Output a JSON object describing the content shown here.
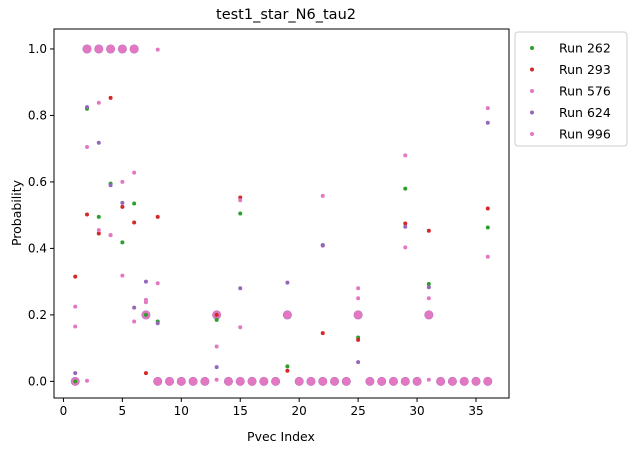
{
  "chart_data": {
    "type": "scatter",
    "title": "test1_star_N6_tau2",
    "xlabel": "Pvec Index",
    "ylabel": "Probability",
    "xlim": [
      -0.8,
      37.8
    ],
    "ylim": [
      -0.05,
      1.06
    ],
    "xticks": [
      0,
      5,
      10,
      15,
      20,
      25,
      30,
      35
    ],
    "xtick_labels": [
      "0",
      "5",
      "10",
      "15",
      "20",
      "25",
      "30",
      "35"
    ],
    "yticks": [
      0.0,
      0.2,
      0.4,
      0.6,
      0.8,
      1.0
    ],
    "ytick_labels": [
      "0.0",
      "0.2",
      "0.4",
      "0.6",
      "0.8",
      "1.0"
    ],
    "grid": false,
    "legend_position": "outside-top-right",
    "cluster_points": {
      "description_free": true,
      "big_x": [
        1,
        2,
        3,
        4,
        5,
        6,
        7,
        8,
        9,
        10,
        11,
        12,
        13,
        14,
        15,
        16,
        17,
        18,
        19,
        20,
        21,
        22,
        23,
        24,
        26,
        27,
        28,
        29,
        30,
        31,
        32,
        33,
        34,
        35,
        36
      ],
      "big_y": [
        0,
        1,
        1,
        1,
        1,
        1,
        0.2,
        0,
        0,
        0,
        0,
        0,
        0.2,
        0,
        0,
        0,
        0,
        0,
        0.2,
        0,
        0,
        0,
        0,
        0,
        0,
        0,
        0,
        0,
        0,
        0.2,
        0,
        0,
        0,
        0,
        0
      ],
      "big_x2": [
        25
      ],
      "big_y2": [
        0.2
      ]
    },
    "series": [
      {
        "name": "Run 262",
        "color": "#2ca02c",
        "points": [
          [
            1,
            0.0
          ],
          [
            2,
            0.82
          ],
          [
            3,
            0.495
          ],
          [
            4,
            0.595
          ],
          [
            5,
            0.418
          ],
          [
            6,
            0.535
          ],
          [
            7,
            0.2
          ],
          [
            8,
            0.18
          ],
          [
            13,
            0.185
          ],
          [
            15,
            0.505
          ],
          [
            19,
            0.045
          ],
          [
            22,
            0.41
          ],
          [
            25,
            0.132
          ],
          [
            29,
            0.58
          ],
          [
            31,
            0.293
          ],
          [
            36,
            0.463
          ]
        ]
      },
      {
        "name": "Run 293",
        "color": "#d62728",
        "points": [
          [
            1,
            0.315
          ],
          [
            2,
            0.502
          ],
          [
            3,
            0.445
          ],
          [
            4,
            0.853
          ],
          [
            5,
            0.525
          ],
          [
            6,
            0.478
          ],
          [
            7,
            0.025
          ],
          [
            8,
            0.495
          ],
          [
            13,
            0.2
          ],
          [
            15,
            0.553
          ],
          [
            19,
            0.032
          ],
          [
            22,
            0.145
          ],
          [
            25,
            0.125
          ],
          [
            29,
            0.475
          ],
          [
            31,
            0.453
          ],
          [
            36,
            0.52
          ]
        ]
      },
      {
        "name": "Run 576",
        "color": "#e377c2",
        "points": [
          [
            1,
            0.165
          ],
          [
            2,
            0.705
          ],
          [
            3,
            0.455
          ],
          [
            4,
            0.44
          ],
          [
            5,
            0.6
          ],
          [
            6,
            0.18
          ],
          [
            7,
            0.245
          ],
          [
            8,
            0.295
          ],
          [
            13,
            0.105
          ],
          [
            15,
            0.545
          ],
          [
            19,
            0.2
          ],
          [
            22,
            0.408
          ],
          [
            25,
            0.25
          ],
          [
            29,
            0.403
          ],
          [
            31,
            0.25
          ],
          [
            36,
            0.375
          ]
        ]
      },
      {
        "name": "Run 624",
        "color": "#9467bd",
        "points": [
          [
            1,
            0.025
          ],
          [
            2,
            0.825
          ],
          [
            3,
            0.718
          ],
          [
            4,
            0.59
          ],
          [
            5,
            0.537
          ],
          [
            6,
            0.222
          ],
          [
            7,
            0.3
          ],
          [
            8,
            0.175
          ],
          [
            13,
            0.043
          ],
          [
            15,
            0.28
          ],
          [
            19,
            0.297
          ],
          [
            22,
            0.41
          ],
          [
            25,
            0.058
          ],
          [
            29,
            0.465
          ],
          [
            31,
            0.283
          ],
          [
            36,
            0.778
          ]
        ]
      },
      {
        "name": "Run 996",
        "color": "#e377c2",
        "points": [
          [
            1,
            0.225
          ],
          [
            2,
            0.002
          ],
          [
            3,
            0.838
          ],
          [
            4,
            0.44
          ],
          [
            5,
            0.318
          ],
          [
            6,
            0.628
          ],
          [
            7,
            0.238
          ],
          [
            8,
            0.998
          ],
          [
            13,
            0.005
          ],
          [
            15,
            0.163
          ],
          [
            19,
            0.2
          ],
          [
            22,
            0.558
          ],
          [
            25,
            0.28
          ],
          [
            29,
            0.68
          ],
          [
            31,
            0.005
          ],
          [
            36,
            0.822
          ]
        ]
      }
    ]
  }
}
